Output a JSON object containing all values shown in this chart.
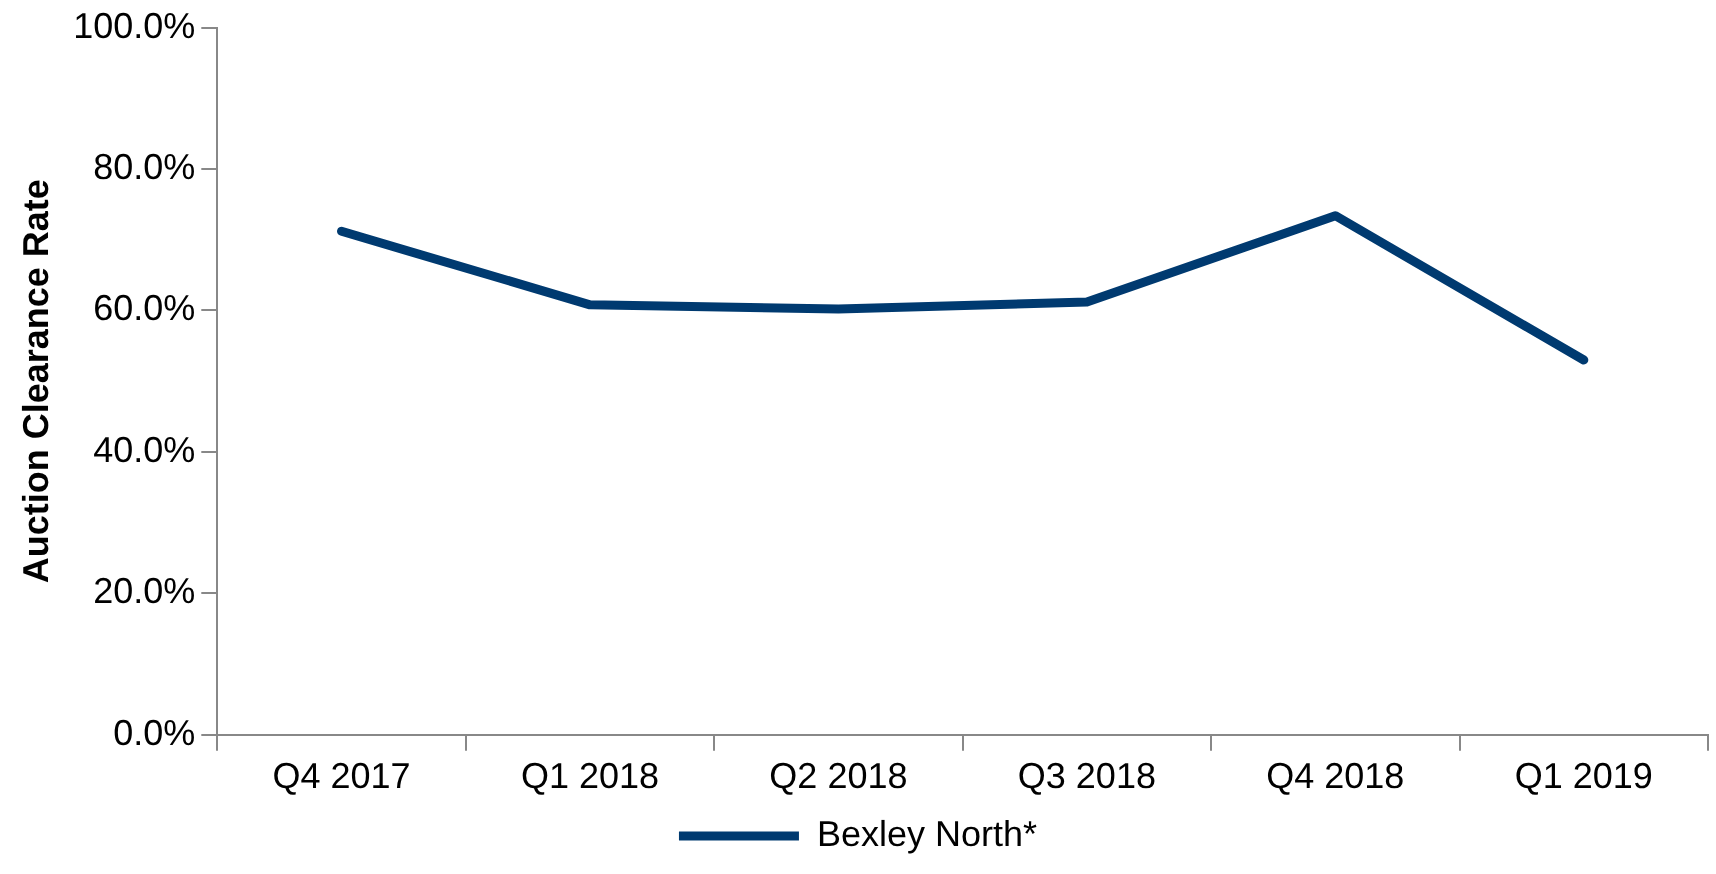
{
  "chart_data": {
    "type": "line",
    "ylabel": "Auction Clearance Rate",
    "categories": [
      "Q4 2017",
      "Q1 2018",
      "Q2 2018",
      "Q3 2018",
      "Q4 2018",
      "Q1 2019"
    ],
    "series": [
      {
        "name": "Bexley North*",
        "color": "#003a70",
        "values": [
          71.2,
          60.8,
          60.2,
          61.2,
          73.4,
          53.0
        ]
      }
    ],
    "ylim": [
      0,
      100
    ],
    "yticks": [
      {
        "value": 0,
        "label": "0.0%"
      },
      {
        "value": 20,
        "label": "20.0%"
      },
      {
        "value": 40,
        "label": "40.0%"
      },
      {
        "value": 60,
        "label": "60.0%"
      },
      {
        "value": 80,
        "label": "80.0%"
      },
      {
        "value": 100,
        "label": "100.0%"
      }
    ],
    "grid": false,
    "legend": "bottom",
    "marker": "none",
    "line_style": "solid"
  }
}
